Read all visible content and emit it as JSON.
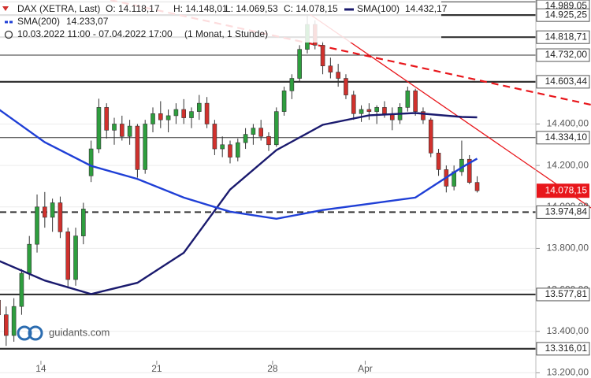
{
  "header": {
    "instrument": "DAX (XETRA, Last)",
    "open": "O: 14.118,17",
    "high": "H: 14.148,01",
    "low": "L: 14.069,53",
    "close": "C: 14.078,15",
    "sma100_value": "14.432,17",
    "sma200_value": "14.233,07",
    "period": "10.03.2022 11:00 - 07.04.2022 17:00",
    "resolution": "(1 Monat, 1 Stunde)"
  },
  "watermark": "guidants.com",
  "chart_data": {
    "type": "candlestick",
    "up_color": "#2e9e3e",
    "down_color": "#d0312d",
    "candles": {
      "open": [
        13550,
        13480,
        13380,
        13520,
        13680,
        13820,
        14000,
        13950,
        14020,
        13880,
        13650,
        13860,
        14150,
        14280,
        14480,
        14370,
        14400,
        14340,
        14390,
        14180,
        14400,
        14450,
        14420,
        14440,
        14470,
        14430,
        14460,
        14500,
        14400,
        14280,
        14300,
        14240,
        14310,
        14350,
        14380,
        14340,
        14300,
        14460,
        14560,
        14620,
        14760,
        14880,
        14780,
        14680,
        14650,
        14620,
        14540,
        14450,
        14470,
        14460,
        14480,
        14450,
        14420,
        14480,
        14560,
        14460,
        14420,
        14260,
        14180,
        14100,
        14170,
        14230,
        14118.17
      ],
      "high": [
        13600,
        13520,
        13560,
        13700,
        13860,
        14060,
        14072,
        14040,
        14050,
        13900,
        13900,
        14020,
        14320,
        14522,
        14500,
        14430,
        14440,
        14420,
        14400,
        14420,
        14480,
        14510,
        14470,
        14500,
        14520,
        14480,
        14540,
        14530,
        14420,
        14340,
        14320,
        14330,
        14380,
        14400,
        14420,
        14360,
        14480,
        14580,
        14640,
        14780,
        14925,
        14900,
        14800,
        14720,
        14690,
        14640,
        14560,
        14490,
        14500,
        14490,
        14510,
        14480,
        14500,
        14580,
        14570,
        14480,
        14430,
        14280,
        14200,
        14200,
        14320,
        14250,
        14148.01
      ],
      "low": [
        13450,
        13330,
        13350,
        13480,
        13650,
        13780,
        13900,
        13880,
        13850,
        13607,
        13620,
        13820,
        14120,
        14260,
        14330,
        14300,
        14320,
        14300,
        14141,
        14160,
        14360,
        14380,
        14360,
        14400,
        14400,
        14380,
        14420,
        14380,
        14250,
        14240,
        14210,
        14220,
        14280,
        14300,
        14320,
        14270,
        14290,
        14440,
        14520,
        14600,
        14740,
        14760,
        14640,
        14620,
        14580,
        14520,
        14420,
        14410,
        14420,
        14400,
        14430,
        14370,
        14400,
        14460,
        14440,
        14400,
        14240,
        14150,
        14070,
        14080,
        14150,
        14110,
        14069.53
      ],
      "close": [
        13480,
        13380,
        13520,
        13680,
        13820,
        14000,
        13950,
        14020,
        13880,
        13650,
        13860,
        13990,
        14280,
        14480,
        14370,
        14400,
        14340,
        14390,
        14180,
        14400,
        14450,
        14420,
        14440,
        14470,
        14430,
        14460,
        14500,
        14400,
        14280,
        14300,
        14240,
        14310,
        14350,
        14380,
        14340,
        14300,
        14460,
        14560,
        14620,
        14760,
        14880,
        14780,
        14680,
        14650,
        14620,
        14540,
        14450,
        14470,
        14460,
        14480,
        14450,
        14420,
        14480,
        14560,
        14460,
        14420,
        14260,
        14180,
        14100,
        14170,
        14230,
        14118.17,
        14078.15
      ]
    },
    "series": [
      {
        "name": "SMA(100)",
        "color": "#1a1a6e",
        "legend_dash": "solid",
        "x": [
          0,
          6,
          12,
          18,
          24,
          30,
          36,
          42,
          48,
          54,
          60,
          62
        ],
        "values": [
          13741,
          13645,
          13580,
          13634,
          13779,
          14084,
          14274,
          14396,
          14442,
          14453,
          14434,
          14432.17
        ]
      },
      {
        "name": "SMA(200)",
        "color": "#1f3fd6",
        "legend_dash": "dashed",
        "x": [
          0,
          6,
          12,
          18,
          24,
          30,
          36,
          42,
          48,
          54,
          60,
          62
        ],
        "values": [
          14472,
          14312,
          14198,
          14135,
          14045,
          13977,
          13943,
          13985,
          14015,
          14045,
          14190,
          14233.07
        ]
      }
    ],
    "xlim": [
      0.2,
      69.6
    ],
    "xticks": [
      {
        "value": 5.5,
        "label": "14"
      },
      {
        "value": 20.5,
        "label": "21"
      },
      {
        "value": 35.5,
        "label": "28"
      },
      {
        "value": 47.5,
        "label": "Apr"
      }
    ],
    "ylim": [
      13175,
      14998
    ],
    "yticks": [
      {
        "value": 13200,
        "label": "13.200,00"
      },
      {
        "value": 13400,
        "label": "13.400,00"
      },
      {
        "value": 13600,
        "label": "13.600,00"
      },
      {
        "value": 13800,
        "label": "13.800,00"
      },
      {
        "value": 14000,
        "label": "14.000,00"
      },
      {
        "value": 14200,
        "label": "14.200,00"
      },
      {
        "value": 14400,
        "label": "14.400,00"
      }
    ],
    "levels": [
      {
        "value": 14989.05,
        "label": "14.989,05",
        "style": "solid"
      },
      {
        "value": 14925.25,
        "label": "14.925,25",
        "style": "thick"
      },
      {
        "value": 14818.71,
        "label": "14.818,71",
        "style": "thick"
      },
      {
        "value": 14732.0,
        "label": "14.732,00",
        "style": "thin"
      },
      {
        "value": 14603.44,
        "label": "14.603,44",
        "style": "thick"
      },
      {
        "value": 14334.1,
        "label": "14.334,10",
        "style": "thin"
      },
      {
        "value": 13974.84,
        "label": "13.974,84",
        "style": "dashed"
      },
      {
        "value": 13577.81,
        "label": "13.577,81",
        "style": "thick"
      },
      {
        "value": 13316.01,
        "label": "13.316,01",
        "style": "thick"
      }
    ],
    "last_price": {
      "value": 14078.15,
      "label": "14.078,15",
      "color": "#e8161b"
    }
  }
}
